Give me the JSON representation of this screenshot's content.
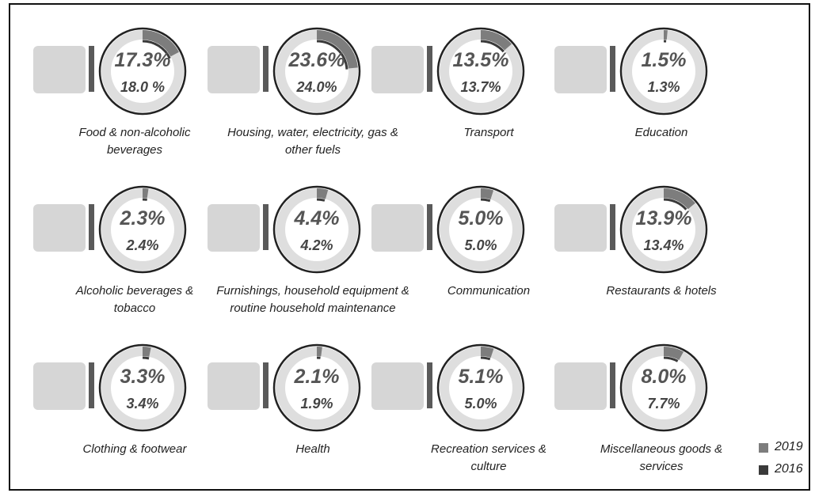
{
  "chart_data": {
    "type": "donut",
    "categories": [
      "Food & non-alcoholic beverages",
      "Housing, water, electricity, gas & other fuels",
      "Transport",
      "Education",
      "Alcoholic beverages & tobacco",
      "Furnishings, household equipment & routine household maintenance",
      "Communication",
      "Restaurants & hotels",
      "Clothing & footwear",
      "Health",
      "Recreation services & culture",
      "Miscellaneous goods & services"
    ],
    "series": [
      {
        "name": "2019",
        "color": "#7d7d7d",
        "values": [
          17.3,
          23.6,
          13.5,
          1.5,
          2.3,
          4.4,
          5.0,
          13.9,
          3.3,
          2.1,
          5.1,
          8.0
        ],
        "value_labels": [
          "17.3%",
          "23.6%",
          "13.5%",
          "1.5%",
          "2.3%",
          "4.4%",
          "5.0%",
          "13.9%",
          "3.3%",
          "2.1%",
          "5.1%",
          "8.0%"
        ]
      },
      {
        "name": "2016",
        "color": "#3a3a3a",
        "values": [
          18.0,
          24.0,
          13.7,
          1.3,
          2.4,
          4.2,
          5.0,
          13.4,
          3.4,
          1.9,
          5.0,
          7.7
        ],
        "value_labels": [
          "18.0 %",
          "24.0%",
          "13.7%",
          "1.3%",
          "2.4%",
          "4.2%",
          "5.0%",
          "13.4%",
          "3.4%",
          "1.9%",
          "5.0%",
          "7.7%"
        ]
      }
    ]
  }
}
